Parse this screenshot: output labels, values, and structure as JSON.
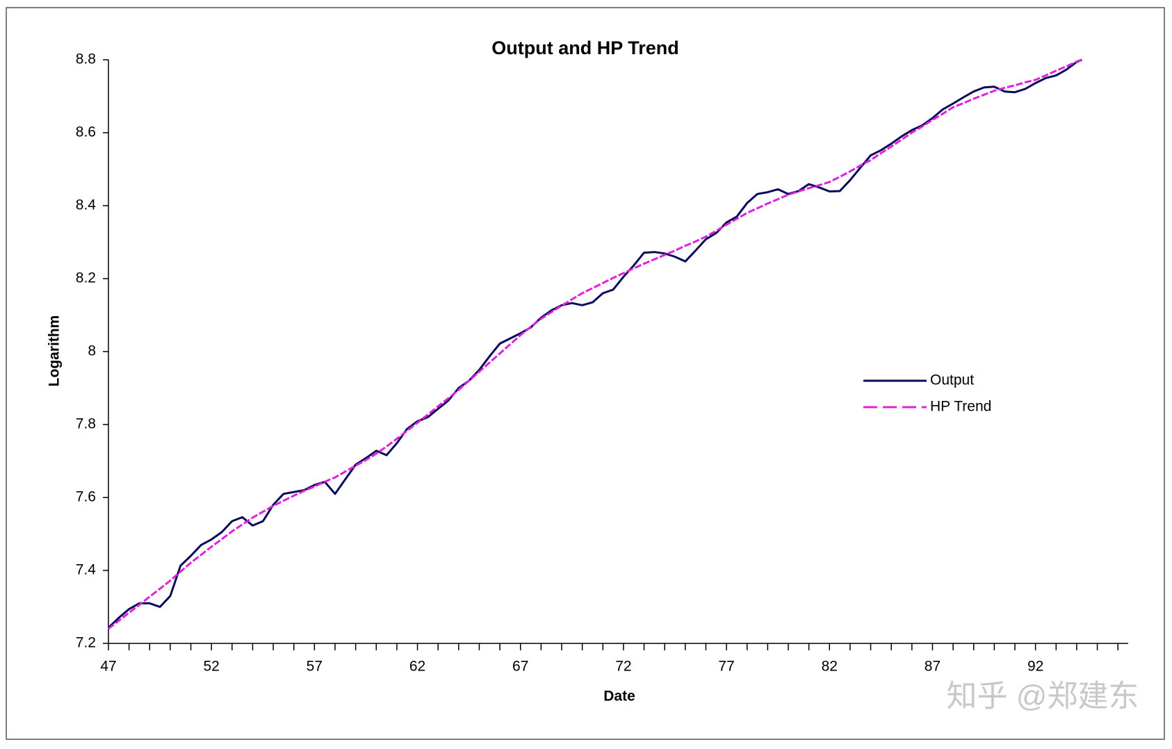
{
  "chart_data": {
    "type": "line",
    "title": "Output and HP Trend",
    "x_label": "Date",
    "y_label": "Logarithm",
    "x": [
      47,
      47.5,
      48,
      48.5,
      49,
      49.5,
      50,
      50.5,
      51,
      51.5,
      52,
      52.5,
      53,
      53.5,
      54,
      54.5,
      55,
      55.5,
      56,
      56.5,
      57,
      57.5,
      58,
      58.5,
      59,
      59.5,
      60,
      60.5,
      61,
      61.5,
      62,
      62.5,
      63,
      63.5,
      64,
      64.5,
      65,
      65.5,
      66,
      66.5,
      67,
      67.5,
      68,
      68.5,
      69,
      69.5,
      70,
      70.5,
      71,
      71.5,
      72,
      72.5,
      73,
      73.5,
      74,
      74.5,
      75,
      75.5,
      76,
      76.5,
      77,
      77.5,
      78,
      78.5,
      79,
      79.5,
      80,
      80.5,
      81,
      81.5,
      82,
      82.5,
      83,
      83.5,
      84,
      84.5,
      85,
      85.5,
      86,
      86.5,
      87,
      87.5,
      88,
      88.5,
      89,
      89.5,
      90,
      90.5,
      91,
      91.5,
      92,
      92.5,
      93,
      93.5,
      94,
      94.25
    ],
    "series": [
      {
        "name": "Output",
        "color": "#0a0a5a",
        "style": "solid",
        "values": [
          7.243,
          7.27,
          7.294,
          7.31,
          7.31,
          7.3,
          7.33,
          7.413,
          7.44,
          7.47,
          7.485,
          7.505,
          7.535,
          7.546,
          7.523,
          7.535,
          7.58,
          7.61,
          7.615,
          7.62,
          7.634,
          7.643,
          7.61,
          7.65,
          7.69,
          7.708,
          7.728,
          7.716,
          7.749,
          7.788,
          7.809,
          7.82,
          7.843,
          7.866,
          7.9,
          7.92,
          7.95,
          7.987,
          8.022,
          8.036,
          8.05,
          8.066,
          8.093,
          8.113,
          8.127,
          8.133,
          8.127,
          8.135,
          8.16,
          8.17,
          8.205,
          8.236,
          8.271,
          8.273,
          8.269,
          8.26,
          8.247,
          8.277,
          8.308,
          8.325,
          8.354,
          8.37,
          8.407,
          8.432,
          8.437,
          8.445,
          8.432,
          8.44,
          8.459,
          8.45,
          8.439,
          8.44,
          8.47,
          8.504,
          8.538,
          8.552,
          8.57,
          8.59,
          8.607,
          8.62,
          8.64,
          8.664,
          8.68,
          8.697,
          8.713,
          8.724,
          8.726,
          8.713,
          8.711,
          8.72,
          8.736,
          8.75,
          8.757,
          8.773,
          8.794,
          8.8
        ]
      },
      {
        "name": "HP Trend",
        "color": "#e020e0",
        "style": "dashed",
        "values": [
          7.24,
          7.262,
          7.284,
          7.306,
          7.328,
          7.35,
          7.372,
          7.397,
          7.421,
          7.443,
          7.465,
          7.486,
          7.507,
          7.526,
          7.545,
          7.561,
          7.577,
          7.591,
          7.605,
          7.618,
          7.63,
          7.643,
          7.655,
          7.671,
          7.687,
          7.703,
          7.72,
          7.74,
          7.761,
          7.783,
          7.805,
          7.827,
          7.85,
          7.872,
          7.895,
          7.92,
          7.945,
          7.97,
          7.995,
          8.02,
          8.045,
          8.068,
          8.09,
          8.108,
          8.126,
          8.143,
          8.16,
          8.174,
          8.188,
          8.202,
          8.215,
          8.228,
          8.241,
          8.253,
          8.265,
          8.277,
          8.29,
          8.302,
          8.315,
          8.331,
          8.348,
          8.364,
          8.38,
          8.393,
          8.406,
          8.418,
          8.43,
          8.439,
          8.448,
          8.456,
          8.465,
          8.479,
          8.494,
          8.51,
          8.525,
          8.544,
          8.562,
          8.581,
          8.6,
          8.617,
          8.635,
          8.652,
          8.67,
          8.681,
          8.693,
          8.704,
          8.715,
          8.723,
          8.73,
          8.738,
          8.745,
          8.757,
          8.77,
          8.782,
          8.795,
          8.8
        ]
      }
    ],
    "xlim": [
      47,
      96.5
    ],
    "xticks": [
      47,
      52,
      57,
      62,
      67,
      72,
      77,
      82,
      87,
      92
    ],
    "minor_xticks": [
      48,
      49,
      50,
      51,
      53,
      54,
      55,
      56,
      58,
      59,
      60,
      61,
      63,
      64,
      65,
      66,
      68,
      69,
      70,
      71,
      73,
      74,
      75,
      76,
      78,
      79,
      80,
      81,
      83,
      84,
      85,
      86,
      88,
      89,
      90,
      91,
      93,
      94,
      95,
      96
    ],
    "ylim": [
      7.2,
      8.8
    ],
    "yticks": [
      7.2,
      7.4,
      7.6,
      7.8,
      8,
      8.2,
      8.4,
      8.6,
      8.8
    ],
    "grid": false,
    "legend": "right",
    "watermark": "知乎 @郑建东"
  }
}
